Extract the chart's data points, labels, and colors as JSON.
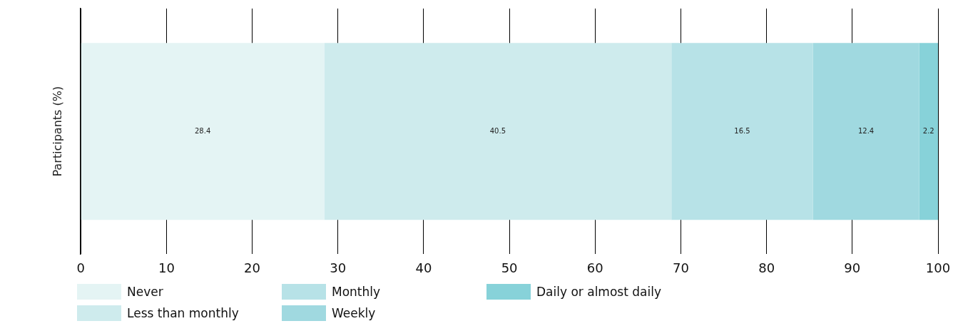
{
  "chart_data": {
    "type": "bar",
    "orientation": "horizontal",
    "stacked": true,
    "ylabel": "Participants (%)",
    "categories": [
      null
    ],
    "series": [
      {
        "name": "Never",
        "color": "#e4f4f4",
        "values": [
          28.4
        ]
      },
      {
        "name": "Less than monthly",
        "color": "#ceebed",
        "values": [
          40.5
        ]
      },
      {
        "name": "Monthly",
        "color": "#b7e2e7",
        "values": [
          16.5
        ]
      },
      {
        "name": "Weekly",
        "color": "#a0d9e0",
        "values": [
          12.4
        ]
      },
      {
        "name": "Daily or almost daily",
        "color": "#87d2d9",
        "values": [
          2.2
        ]
      }
    ],
    "xlim": [
      0,
      100
    ],
    "xticks": [
      0,
      10,
      20,
      30,
      40,
      50,
      60,
      70,
      80,
      90,
      100
    ],
    "grid": "x",
    "legend": "bottom",
    "data_labels": true
  }
}
